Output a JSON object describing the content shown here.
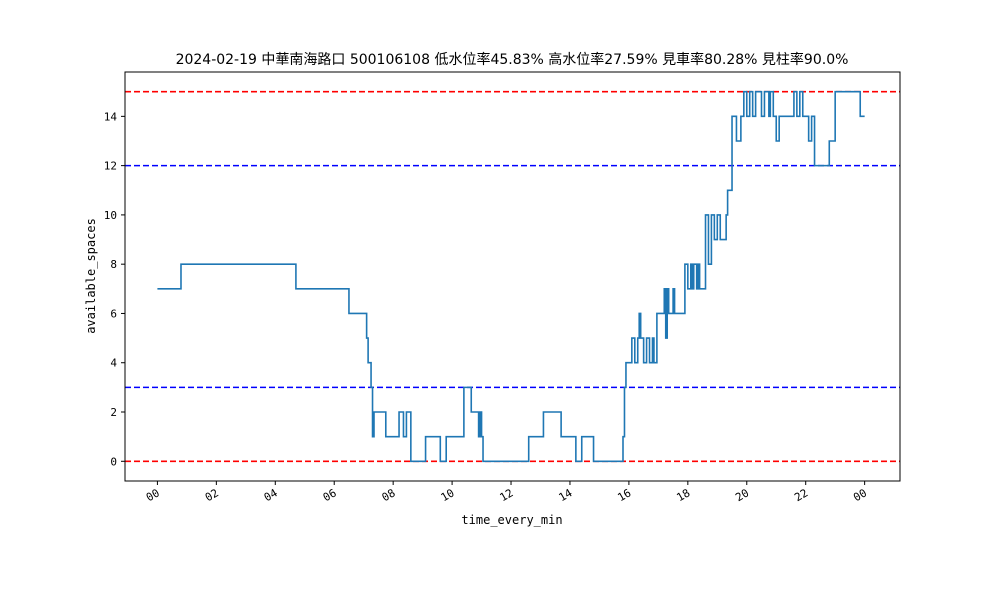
{
  "chart_data": {
    "type": "line",
    "title": "2024-02-19 中華南海路口 500106108 低水位率45.83% 高水位率27.59% 見車率80.28% 見柱率90.0%",
    "xlabel": "time_every_min",
    "ylabel": "available_spaces",
    "x_ticks": [
      "00",
      "02",
      "04",
      "06",
      "08",
      "10",
      "12",
      "14",
      "16",
      "18",
      "20",
      "22",
      "00"
    ],
    "y_ticks": [
      "0",
      "2",
      "4",
      "6",
      "8",
      "10",
      "12",
      "14"
    ],
    "xlim_hours": [
      -1.1,
      25.2
    ],
    "ylim": [
      -0.8,
      15.8
    ],
    "grid": false,
    "reference_lines": [
      {
        "value": 15,
        "color": "#ff0000",
        "style": "dashed"
      },
      {
        "value": 12,
        "color": "#0000ff",
        "style": "dashed"
      },
      {
        "value": 3,
        "color": "#0000ff",
        "style": "dashed"
      },
      {
        "value": 0,
        "color": "#ff0000",
        "style": "dashed"
      }
    ],
    "series": [
      {
        "color": "#1f77b4",
        "step": true,
        "points": [
          [
            0.0,
            7
          ],
          [
            0.8,
            8
          ],
          [
            4.7,
            7
          ],
          [
            6.5,
            6
          ],
          [
            7.1,
            5
          ],
          [
            7.15,
            4
          ],
          [
            7.25,
            3
          ],
          [
            7.3,
            1
          ],
          [
            7.35,
            2
          ],
          [
            7.75,
            1
          ],
          [
            8.2,
            2
          ],
          [
            8.35,
            1
          ],
          [
            8.45,
            2
          ],
          [
            8.6,
            0
          ],
          [
            9.1,
            1
          ],
          [
            9.6,
            0
          ],
          [
            9.8,
            1
          ],
          [
            10.4,
            3
          ],
          [
            10.65,
            2
          ],
          [
            10.9,
            1
          ],
          [
            10.95,
            2
          ],
          [
            11.0,
            1
          ],
          [
            11.05,
            0
          ],
          [
            12.6,
            1
          ],
          [
            13.1,
            2
          ],
          [
            13.7,
            1
          ],
          [
            14.2,
            0
          ],
          [
            14.4,
            1
          ],
          [
            14.8,
            0
          ],
          [
            15.8,
            1
          ],
          [
            15.85,
            3
          ],
          [
            15.9,
            4
          ],
          [
            16.1,
            5
          ],
          [
            16.2,
            4
          ],
          [
            16.3,
            5
          ],
          [
            16.35,
            6
          ],
          [
            16.4,
            5
          ],
          [
            16.5,
            4
          ],
          [
            16.6,
            5
          ],
          [
            16.7,
            4
          ],
          [
            16.8,
            5
          ],
          [
            16.85,
            4
          ],
          [
            16.95,
            6
          ],
          [
            17.2,
            7
          ],
          [
            17.25,
            5
          ],
          [
            17.3,
            7
          ],
          [
            17.35,
            6
          ],
          [
            17.5,
            7
          ],
          [
            17.55,
            6
          ],
          [
            17.9,
            8
          ],
          [
            18.0,
            7
          ],
          [
            18.1,
            8
          ],
          [
            18.15,
            7
          ],
          [
            18.2,
            8
          ],
          [
            18.3,
            7
          ],
          [
            18.35,
            8
          ],
          [
            18.4,
            7
          ],
          [
            18.6,
            10
          ],
          [
            18.7,
            8
          ],
          [
            18.8,
            10
          ],
          [
            18.9,
            9
          ],
          [
            19.0,
            10
          ],
          [
            19.1,
            9
          ],
          [
            19.3,
            10
          ],
          [
            19.35,
            11
          ],
          [
            19.5,
            14
          ],
          [
            19.65,
            13
          ],
          [
            19.8,
            14
          ],
          [
            19.9,
            15
          ],
          [
            20.0,
            14
          ],
          [
            20.1,
            15
          ],
          [
            20.2,
            14
          ],
          [
            20.3,
            15
          ],
          [
            20.5,
            14
          ],
          [
            20.6,
            15
          ],
          [
            20.75,
            14
          ],
          [
            20.8,
            15
          ],
          [
            20.9,
            14
          ],
          [
            21.0,
            13
          ],
          [
            21.1,
            14
          ],
          [
            21.6,
            15
          ],
          [
            21.7,
            14
          ],
          [
            21.8,
            15
          ],
          [
            21.9,
            14
          ],
          [
            22.1,
            13
          ],
          [
            22.2,
            14
          ],
          [
            22.3,
            12
          ],
          [
            22.8,
            13
          ],
          [
            23.0,
            15
          ],
          [
            23.2,
            15
          ],
          [
            23.5,
            15
          ],
          [
            23.85,
            14
          ],
          [
            24.0,
            14
          ]
        ]
      }
    ]
  }
}
